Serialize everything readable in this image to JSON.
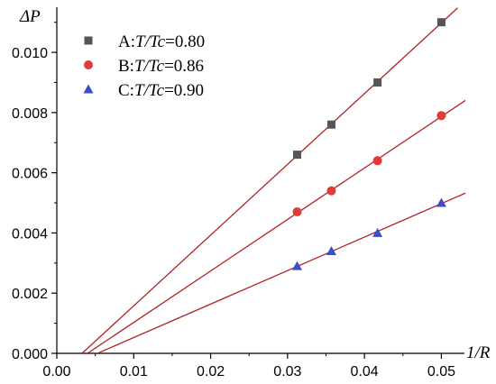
{
  "chart_data": {
    "type": "scatter",
    "xlabel": "1/R",
    "ylabel": "ΔP",
    "xlim": [
      0.0,
      0.053
    ],
    "ylim": [
      0.0,
      0.0115
    ],
    "x_ticks": [
      "0.00",
      "0.01",
      "0.02",
      "0.03",
      "0.04",
      "0.05"
    ],
    "y_ticks": [
      "0.000",
      "0.002",
      "0.004",
      "0.006",
      "0.008",
      "0.010"
    ],
    "grid": false,
    "legend_position": "top-left",
    "fit_line_color": "#b22222",
    "series": [
      {
        "name": "A:T/Tc=0.80",
        "legend_prefix": "A:",
        "legend_var": "T/Tc",
        "legend_value": "=0.80",
        "marker": "square",
        "color": "#555555",
        "x": [
          0.03125,
          0.0357,
          0.0417,
          0.05
        ],
        "y": [
          0.0066,
          0.0076,
          0.009,
          0.011
        ],
        "fit_x": [
          0.0033,
          0.0535
        ]
      },
      {
        "name": "B:T/Tc=0.86",
        "legend_prefix": "B:",
        "legend_var": "T/Tc",
        "legend_value": "=0.86",
        "marker": "circle",
        "color": "#e03a3a",
        "x": [
          0.03125,
          0.0357,
          0.0417,
          0.05
        ],
        "y": [
          0.0047,
          0.0054,
          0.0064,
          0.0079
        ],
        "fit_x": [
          0.0033,
          0.0535
        ]
      },
      {
        "name": "C:T/Tc=0.90",
        "legend_prefix": "C:",
        "legend_var": "T/Tc",
        "legend_value": "=0.90",
        "marker": "triangle",
        "color": "#3a4fc6",
        "x": [
          0.03125,
          0.0357,
          0.0417,
          0.05
        ],
        "y": [
          0.0029,
          0.0034,
          0.004,
          0.005
        ],
        "fit_x": [
          0.0045,
          0.0535
        ]
      }
    ]
  }
}
